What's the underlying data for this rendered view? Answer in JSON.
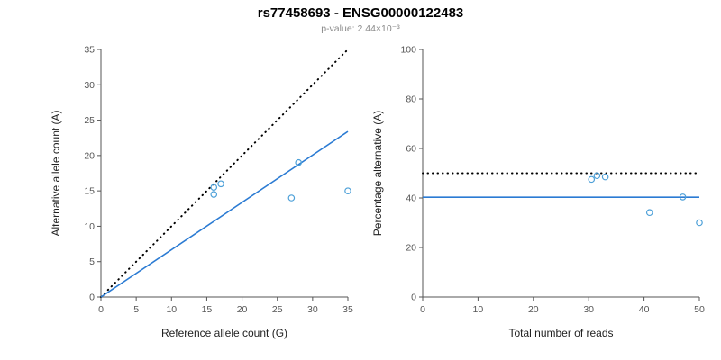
{
  "header": {
    "title": "rs77458693 - ENSG00000122483",
    "subtitle": "p-value: 2.44×10⁻³"
  },
  "colors": {
    "point": "#4da0d8",
    "regression_line": "#2b7bd3",
    "reference_line": "#000000",
    "axis": "#555555",
    "tick_label": "#555555",
    "axis_title": "#222222"
  },
  "chart_data": [
    {
      "type": "scatter",
      "name": "allele-counts",
      "title": "",
      "xlabel": "Reference allele count (G)",
      "ylabel": "Alternative allele count (A)",
      "xlim": [
        0,
        35
      ],
      "ylim": [
        0,
        35
      ],
      "xticks": [
        0,
        5,
        10,
        15,
        20,
        25,
        30,
        35
      ],
      "yticks": [
        0,
        5,
        10,
        15,
        20,
        25,
        30,
        35
      ],
      "grid": false,
      "legend": "none",
      "points": [
        [
          16,
          14.5
        ],
        [
          16,
          15.5
        ],
        [
          17,
          16
        ],
        [
          27,
          14
        ],
        [
          28,
          19
        ],
        [
          35,
          15
        ]
      ],
      "lines": [
        {
          "name": "identity-line",
          "style": "dotted",
          "color": "#000000",
          "x": [
            0,
            35
          ],
          "y": [
            0,
            35
          ]
        },
        {
          "name": "regression-line",
          "style": "solid",
          "color": "#2b7bd3",
          "x": [
            0,
            35
          ],
          "y": [
            0,
            23.4
          ]
        }
      ]
    },
    {
      "type": "scatter",
      "name": "percentage-vs-reads",
      "title": "",
      "xlabel": "Total number of reads",
      "ylabel": "Percentage alternative (A)",
      "xlim": [
        0,
        50
      ],
      "ylim": [
        0,
        100
      ],
      "xticks": [
        0,
        10,
        20,
        30,
        40,
        50
      ],
      "yticks": [
        0,
        20,
        40,
        60,
        80,
        100
      ],
      "grid": false,
      "legend": "none",
      "points": [
        [
          30.5,
          47.5
        ],
        [
          31.5,
          49
        ],
        [
          33,
          48.5
        ],
        [
          41,
          34.1
        ],
        [
          47,
          40.4
        ],
        [
          50,
          30
        ]
      ],
      "lines": [
        {
          "name": "expected-50pct-line",
          "style": "dotted",
          "color": "#000000",
          "x": [
            0,
            50
          ],
          "y": [
            50,
            50
          ]
        },
        {
          "name": "mean-percentage-line",
          "style": "solid",
          "color": "#2b7bd3",
          "x": [
            0,
            50
          ],
          "y": [
            40.3,
            40.3
          ]
        }
      ]
    }
  ]
}
